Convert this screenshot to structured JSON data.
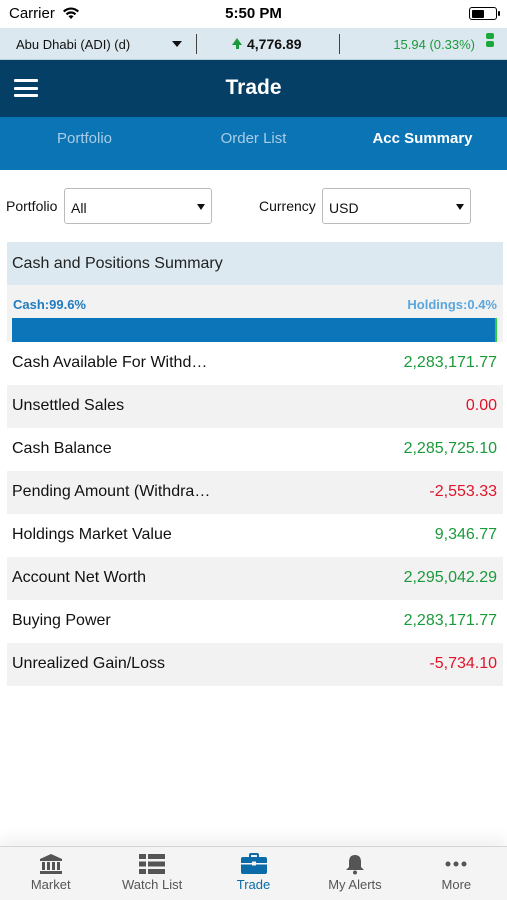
{
  "status": {
    "carrier": "Carrier",
    "time": "5:50 PM"
  },
  "ticker": {
    "exchange": "Abu Dhabi (ADI) (d)",
    "index_value": "4,776.89",
    "change": "15.94 (0.33%)",
    "direction": "up"
  },
  "header": {
    "title": "Trade"
  },
  "tabs": [
    {
      "label": "Portfolio",
      "active": false
    },
    {
      "label": "Order List",
      "active": false
    },
    {
      "label": "Acc Summary",
      "active": true
    }
  ],
  "filters": {
    "portfolio_label": "Portfolio",
    "portfolio_value": "All",
    "currency_label": "Currency",
    "currency_value": "USD"
  },
  "summary": {
    "title": "Cash and Positions Summary",
    "cash_label": "Cash:99.6%",
    "holdings_label": "Holdings:0.4%",
    "cash_percent": 99.6,
    "rows": [
      {
        "label": "Cash Available For Withd…",
        "value": "2,283,171.77",
        "tone": "pos"
      },
      {
        "label": "Unsettled Sales",
        "value": "0.00",
        "tone": "neg"
      },
      {
        "label": "Cash Balance",
        "value": "2,285,725.10",
        "tone": "pos"
      },
      {
        "label": "Pending Amount (Withdra…",
        "value": "-2,553.33",
        "tone": "neg"
      },
      {
        "label": "Holdings Market Value",
        "value": "9,346.77",
        "tone": "pos"
      },
      {
        "label": "Account Net Worth",
        "value": "2,295,042.29",
        "tone": "pos"
      },
      {
        "label": "Buying Power",
        "value": "2,283,171.77",
        "tone": "pos"
      },
      {
        "label": "Unrealized Gain/Loss",
        "value": "-5,734.10",
        "tone": "neg"
      }
    ]
  },
  "nav": [
    {
      "label": "Market",
      "icon": "bank-icon",
      "active": false
    },
    {
      "label": "Watch List",
      "icon": "list-icon",
      "active": false
    },
    {
      "label": "Trade",
      "icon": "briefcase-icon",
      "active": true
    },
    {
      "label": "My Alerts",
      "icon": "bell-icon",
      "active": false
    },
    {
      "label": "More",
      "icon": "more-icon",
      "active": false
    }
  ],
  "colors": {
    "header": "#053f66",
    "tabs": "#0b74b4",
    "positive": "#1a9a3a",
    "negative": "#e0142a",
    "cash_bar": "#0c74b8",
    "holdings_bar": "#2ecc40"
  }
}
